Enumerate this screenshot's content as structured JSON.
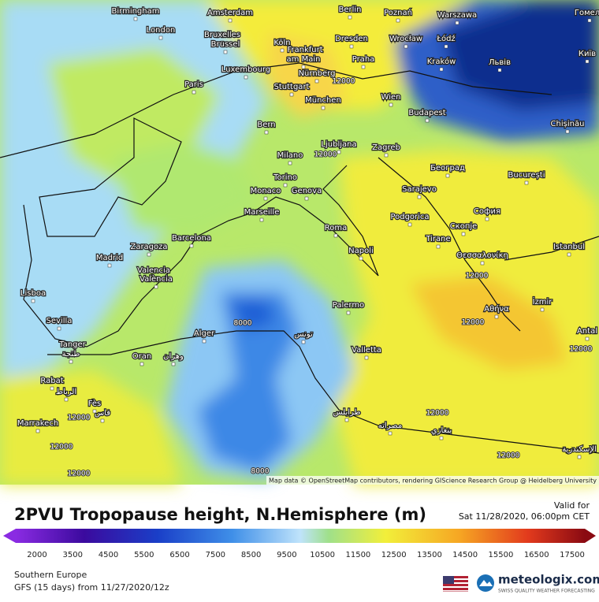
{
  "header": {
    "title": "2PVU Tropopause height, N.Hemisphere (m)",
    "valid_label": "Valid for",
    "valid_time": "Sat 11/28/2020, 06:00pm CET"
  },
  "map": {
    "attribution": "Map data © OpenStreetMap contributors, rendering GIScience Research Group @ Heidelberg University",
    "cities": [
      "Birmingham",
      "London",
      "Amsterdam",
      "Bruxelles",
      "Brussel",
      "Köln",
      "Frankfurt",
      "am Main",
      "Luxembourg",
      "Berlin",
      "Poznań",
      "Warszawa",
      "Гомель",
      "Dresden",
      "Wrocław",
      "Łódź",
      "Praha",
      "Kraków",
      "Львів",
      "Київ",
      "Nürnberg",
      "Stuttgart",
      "München",
      "Wien",
      "Paris",
      "Budapest",
      "Chișinău",
      "Bern",
      "Ljubljana",
      "Zagreb",
      "Milano",
      "Torino",
      "Monaco",
      "Genova",
      "Marseille",
      "Београд",
      "București",
      "Sarajevo",
      "София",
      "Podgorica",
      "Скопје",
      "Tirane",
      "Roma",
      "Barcelona",
      "Zaragoza",
      "Madrid",
      "Valencia",
      "València",
      "Istanbul",
      "Napoli",
      "Θεσσαλονίκη",
      "Lisboa",
      "Palermo",
      "Αθήνα",
      "İzmir",
      "Sevilla",
      "Alger",
      "تونس",
      "Valletta",
      "Antal",
      "Tanger",
      "طنجة",
      "Oran",
      "وهران",
      "Rabat",
      "الرباط",
      "Fès",
      "فاس",
      "Marrakech",
      "طرابلس",
      "مصراته",
      "بنغازي",
      "الإسكندرية"
    ],
    "contour_labels": [
      12000,
      12000,
      12000,
      12000,
      12000,
      12000,
      12000,
      12000,
      12000,
      12000,
      8000,
      8000
    ]
  },
  "colorbar": {
    "ticks": [
      2000,
      3500,
      4500,
      5500,
      6500,
      7500,
      8500,
      9500,
      10500,
      11500,
      12500,
      13500,
      14500,
      15500,
      16500,
      17500
    ]
  },
  "footer": {
    "region": "Southern Europe",
    "model_run": "GFS (15 days) from 11/27/2020/12z",
    "brand": "meteologix.com",
    "tagline": "SWISS QUALITY WEATHER FORECASTING"
  }
}
